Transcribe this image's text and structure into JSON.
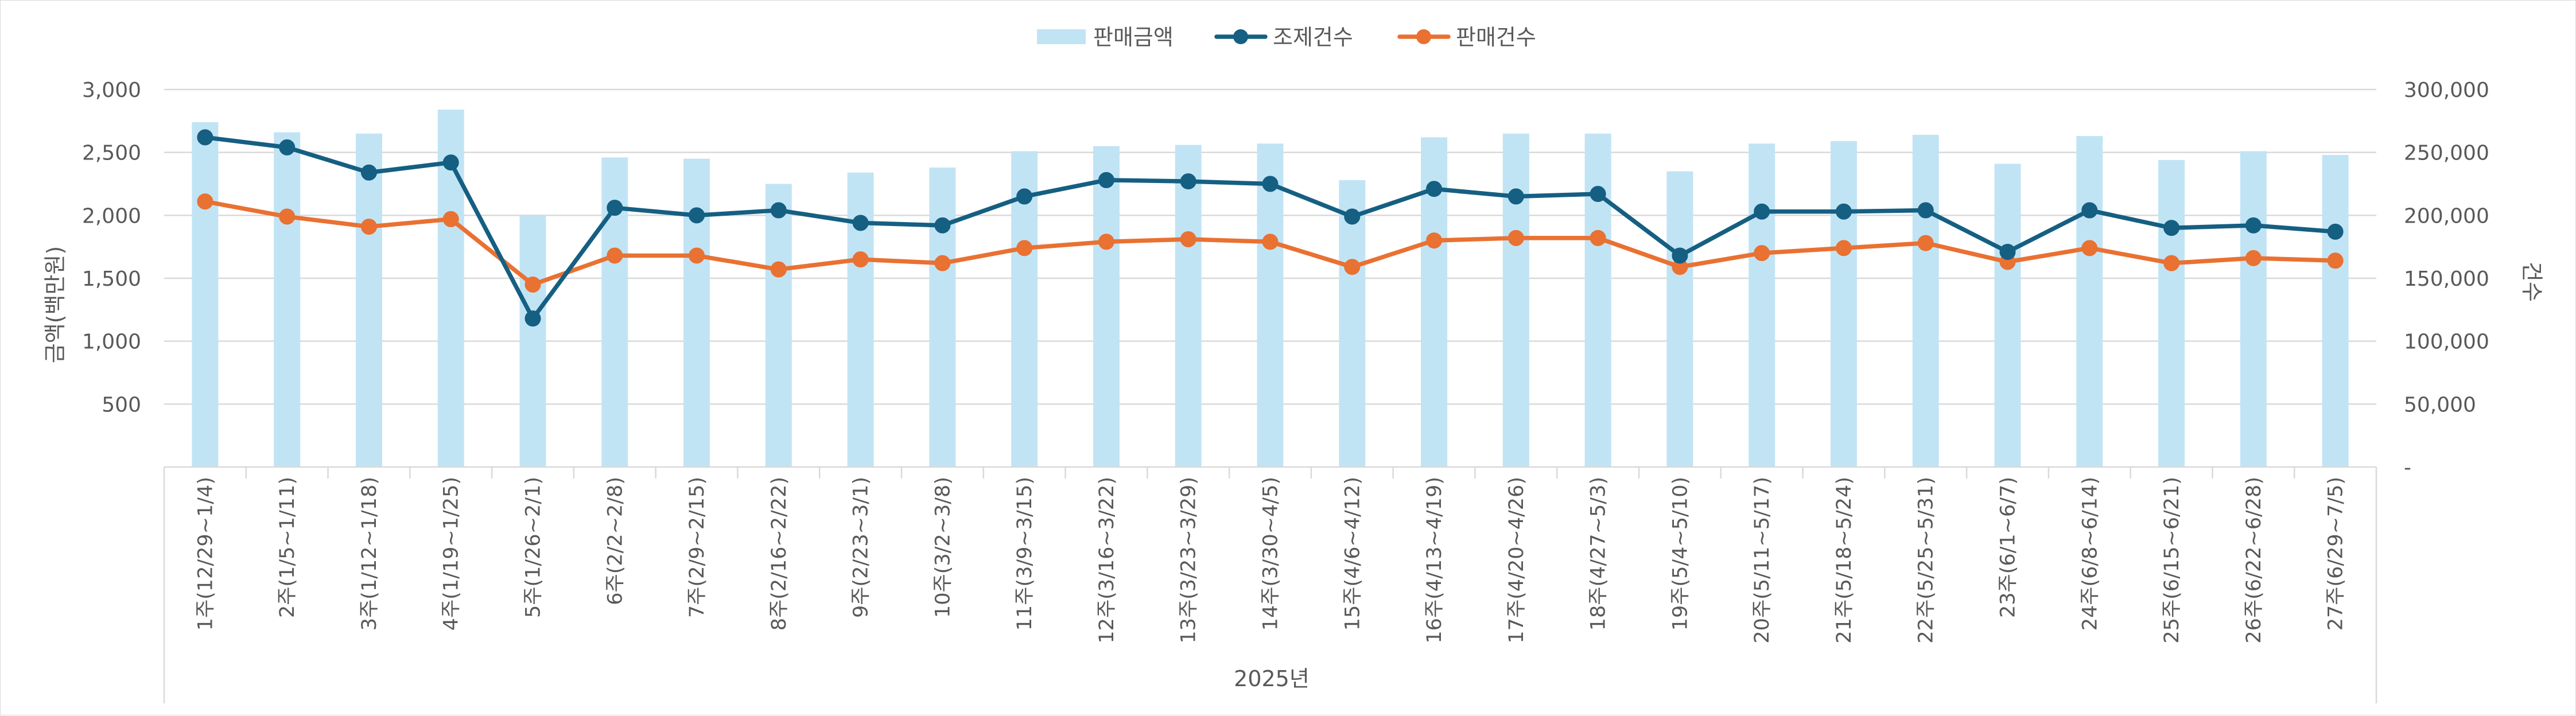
{
  "chart_data": {
    "type": "bar+line",
    "title": "",
    "legend_position": "top-center",
    "grid": true,
    "legend": [
      {
        "name": "판매금액",
        "kind": "bar",
        "color": "#c1e4f5"
      },
      {
        "name": "조제건수",
        "kind": "line",
        "color": "#155f82"
      },
      {
        "name": "판매건수",
        "kind": "line",
        "color": "#e97132"
      }
    ],
    "xlabel": "2025년",
    "ylabel_left": "금액(백만원)",
    "ylabel_right": "건수",
    "ylim_left": [
      0,
      3000
    ],
    "ylim_right": [
      0,
      300000
    ],
    "left_ticks": [
      {
        "value": 500,
        "label": "500"
      },
      {
        "value": 1000,
        "label": "1,000"
      },
      {
        "value": 1500,
        "label": "1,500"
      },
      {
        "value": 2000,
        "label": "2,000"
      },
      {
        "value": 2500,
        "label": "2,500"
      },
      {
        "value": 3000,
        "label": "3,000"
      }
    ],
    "right_ticks": [
      {
        "value": 0,
        "label": "-"
      },
      {
        "value": 50000,
        "label": "50,000"
      },
      {
        "value": 100000,
        "label": "100,000"
      },
      {
        "value": 150000,
        "label": "150,000"
      },
      {
        "value": 200000,
        "label": "200,000"
      },
      {
        "value": 250000,
        "label": "250,000"
      },
      {
        "value": 300000,
        "label": "300,000"
      }
    ],
    "categories": [
      "1주(12/29~1/4)",
      "2주(1/5~1/11)",
      "3주(1/12~1/18)",
      "4주(1/19~1/25)",
      "5주(1/26~2/1)",
      "6주(2/2~2/8)",
      "7주(2/9~2/15)",
      "8주(2/16~2/22)",
      "9주(2/23~3/1)",
      "10주(3/2~3/8)",
      "11주(3/9~3/15)",
      "12주(3/16~3/22)",
      "13주(3/23~3/29)",
      "14주(3/30~4/5)",
      "15주(4/6~4/12)",
      "16주(4/13~4/19)",
      "17주(4/20~4/26)",
      "18주(4/27~5/3)",
      "19주(5/4~5/10)",
      "20주(5/11~5/17)",
      "21주(5/18~5/24)",
      "22주(5/25~5/31)",
      "23주(6/1~6/7)",
      "24주(6/8~6/14)",
      "25주(6/15~6/21)",
      "26주(6/22~6/28)",
      "27주(6/29~7/5)"
    ],
    "series": [
      {
        "name": "판매금액",
        "axis": "left",
        "type": "bar",
        "values": [
          2740,
          2660,
          2650,
          2840,
          2000,
          2460,
          2450,
          2250,
          2340,
          2380,
          2510,
          2550,
          2560,
          2570,
          2280,
          2620,
          2650,
          2650,
          2350,
          2570,
          2590,
          2640,
          2410,
          2630,
          2440,
          2510,
          2480
        ]
      },
      {
        "name": "조제건수",
        "axis": "right",
        "type": "line",
        "values": [
          262000,
          254000,
          234000,
          242000,
          118000,
          206000,
          200000,
          204000,
          194000,
          192000,
          215000,
          228000,
          227000,
          225000,
          199000,
          221000,
          215000,
          217000,
          168000,
          203000,
          203000,
          204000,
          171000,
          204000,
          190000,
          192000,
          187000
        ]
      },
      {
        "name": "판매건수",
        "axis": "right",
        "type": "line",
        "values": [
          211000,
          199000,
          191000,
          197000,
          145000,
          168000,
          168000,
          157000,
          165000,
          162000,
          174000,
          179000,
          181000,
          179000,
          159000,
          180000,
          182000,
          182000,
          159000,
          170000,
          174000,
          178000,
          163000,
          174000,
          162000,
          166000,
          164000
        ]
      }
    ]
  }
}
